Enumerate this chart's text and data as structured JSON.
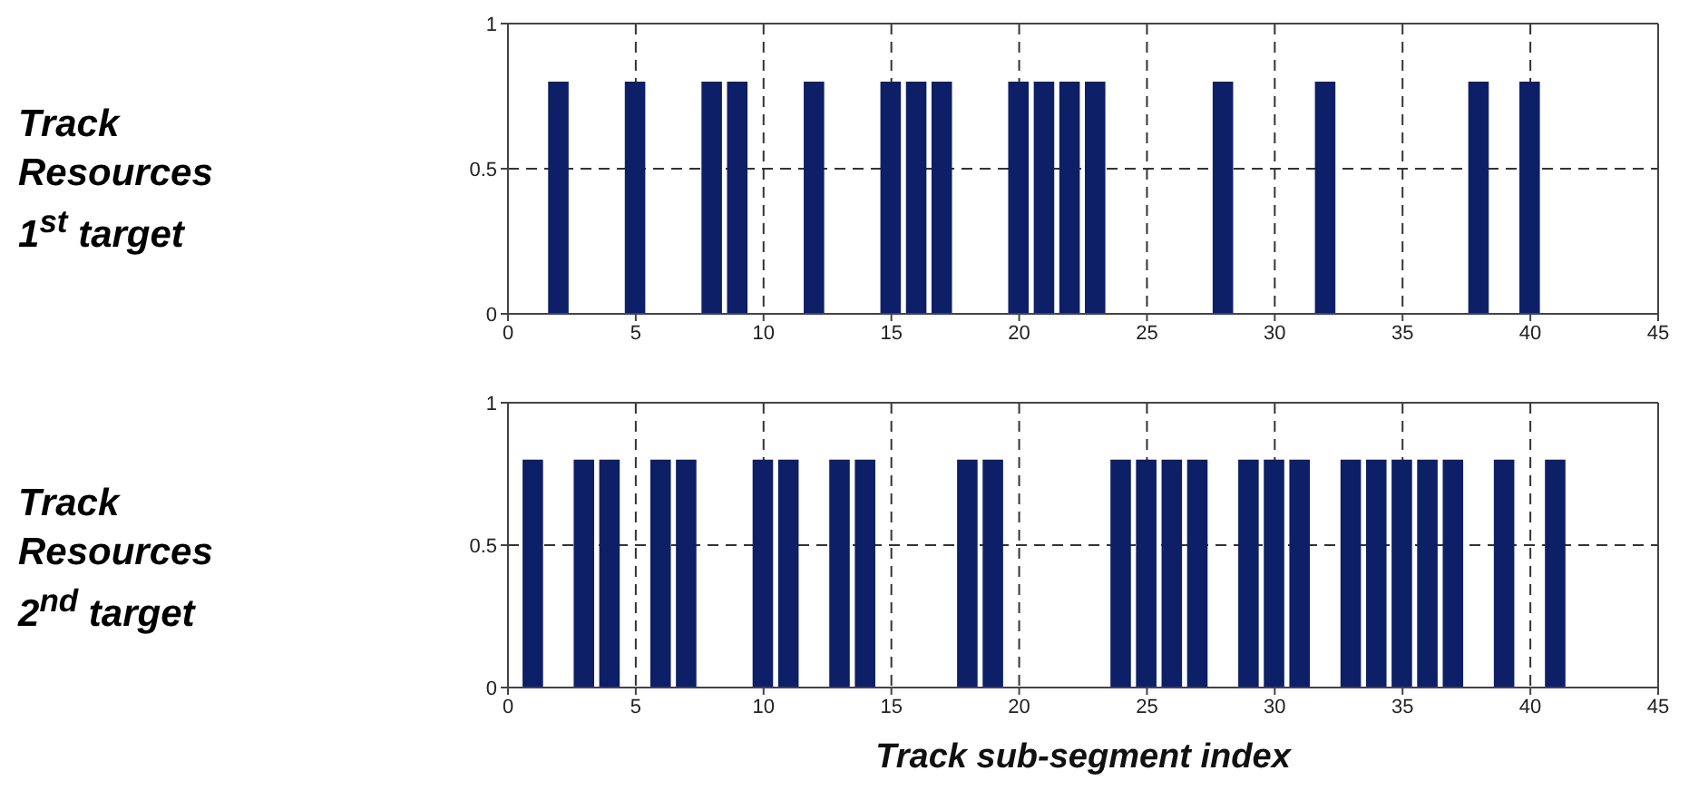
{
  "chart_data": [
    {
      "type": "bar",
      "ylabel": "Track Resources 1$^{st}$ target",
      "x": [
        1,
        2,
        3,
        4,
        5,
        6,
        7,
        8,
        9,
        10,
        11,
        12,
        13,
        14,
        15,
        16,
        17,
        18,
        19,
        20,
        21,
        22,
        23,
        24,
        25,
        26,
        27,
        28,
        29,
        30,
        31,
        32,
        33,
        34,
        35,
        36,
        37,
        38,
        39,
        40,
        41
      ],
      "series": [
        {
          "color": "#0d1f66",
          "values": [
            0,
            0.8,
            0,
            0,
            0.8,
            0,
            0,
            0.8,
            0.8,
            0,
            0,
            0.8,
            0,
            0,
            0.8,
            0.8,
            0.8,
            0,
            0,
            0.8,
            0.8,
            0.8,
            0.8,
            0,
            0,
            0,
            0,
            0.8,
            0,
            0,
            0,
            0.8,
            0,
            0,
            0,
            0,
            0,
            0.8,
            0,
            0.8,
            0
          ]
        }
      ],
      "xlim": [
        0,
        45
      ],
      "xticks": [
        0,
        5,
        10,
        15,
        20,
        25,
        30,
        35,
        40,
        45
      ],
      "ylim": [
        0,
        1
      ],
      "yticks": [
        0,
        0.5,
        1
      ],
      "grid": true,
      "line_style": "dashed"
    },
    {
      "type": "bar",
      "ylabel": "Track Resources 2$^{nd}$ target",
      "xlabel": "Track sub-segment index",
      "x": [
        1,
        2,
        3,
        4,
        5,
        6,
        7,
        8,
        9,
        10,
        11,
        12,
        13,
        14,
        15,
        16,
        17,
        18,
        19,
        20,
        21,
        22,
        23,
        24,
        25,
        26,
        27,
        28,
        29,
        30,
        31,
        32,
        33,
        34,
        35,
        36,
        37,
        38,
        39,
        40,
        41
      ],
      "series": [
        {
          "color": "#0d1f66",
          "values": [
            0.8,
            0,
            0.8,
            0.8,
            0,
            0.8,
            0.8,
            0,
            0,
            0.8,
            0.8,
            0,
            0.8,
            0.8,
            0,
            0,
            0,
            0.8,
            0.8,
            0,
            0,
            0,
            0,
            0.8,
            0.8,
            0.8,
            0.8,
            0,
            0.8,
            0.8,
            0.8,
            0,
            0.8,
            0.8,
            0.8,
            0.8,
            0.8,
            0,
            0.8,
            0,
            0.8
          ]
        }
      ],
      "xlim": [
        0,
        45
      ],
      "xticks": [
        0,
        5,
        10,
        15,
        20,
        25,
        30,
        35,
        40,
        45
      ],
      "ylim": [
        0,
        1
      ],
      "yticks": [
        0,
        0.5,
        1
      ],
      "grid": true,
      "line_style": "dashed"
    }
  ]
}
